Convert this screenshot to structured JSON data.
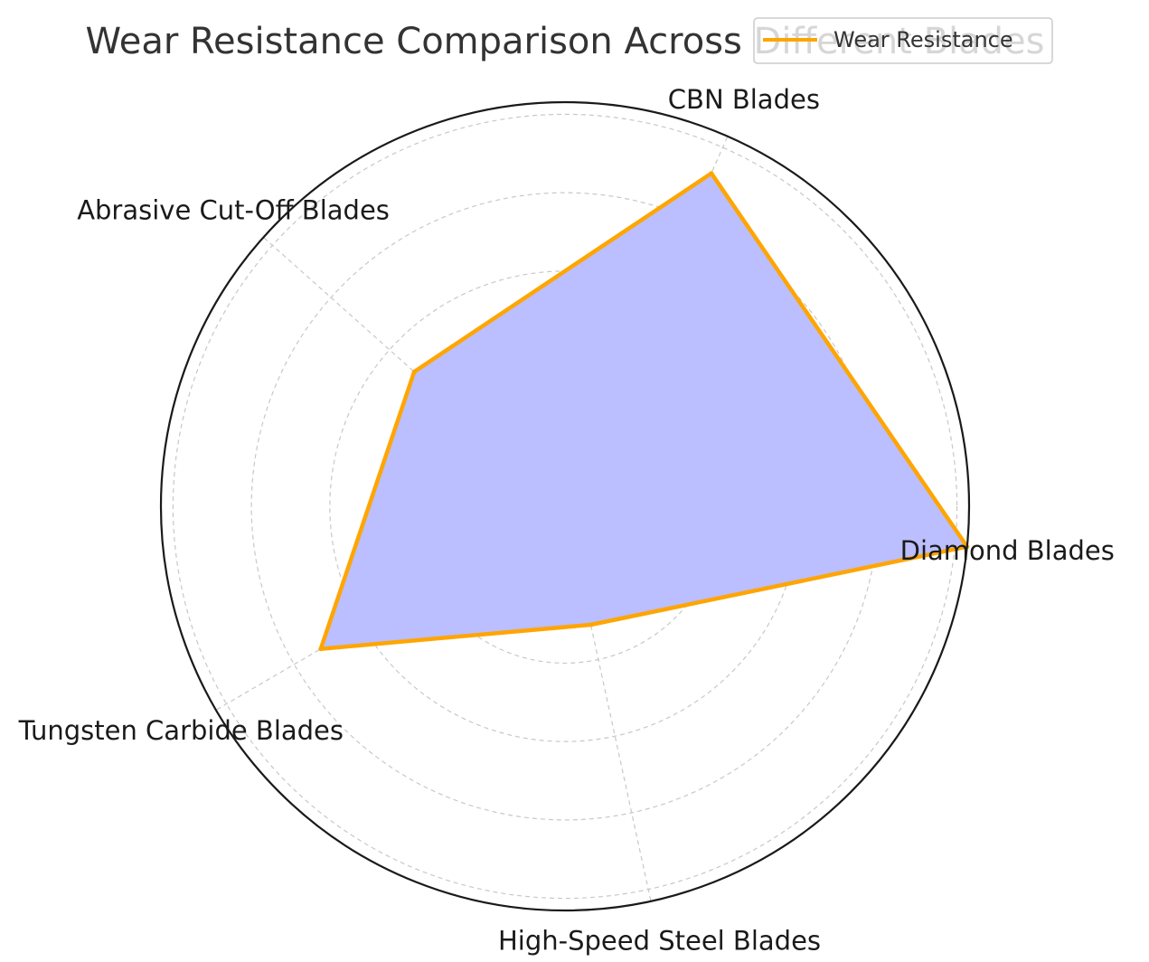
{
  "chart_data": {
    "type": "radar",
    "title": "Wear Resistance Comparison Across Different Blades",
    "categories": [
      "Diamond Blades",
      "CBN Blades",
      "Abrasive Cut-Off Blades",
      "Tungsten Carbide Blades",
      "High-Speed Steel Blades"
    ],
    "series": [
      {
        "name": "Wear Resistance",
        "values": [
          10,
          9,
          5,
          7,
          3
        ]
      }
    ],
    "rlim": [
      0,
      10
    ],
    "grid": true,
    "legend": "top-right",
    "colors": {
      "line": "#FFA500",
      "fill": "#BBBEFF",
      "grid": "#c8c8c8",
      "frame": "#1a1a1a"
    }
  }
}
